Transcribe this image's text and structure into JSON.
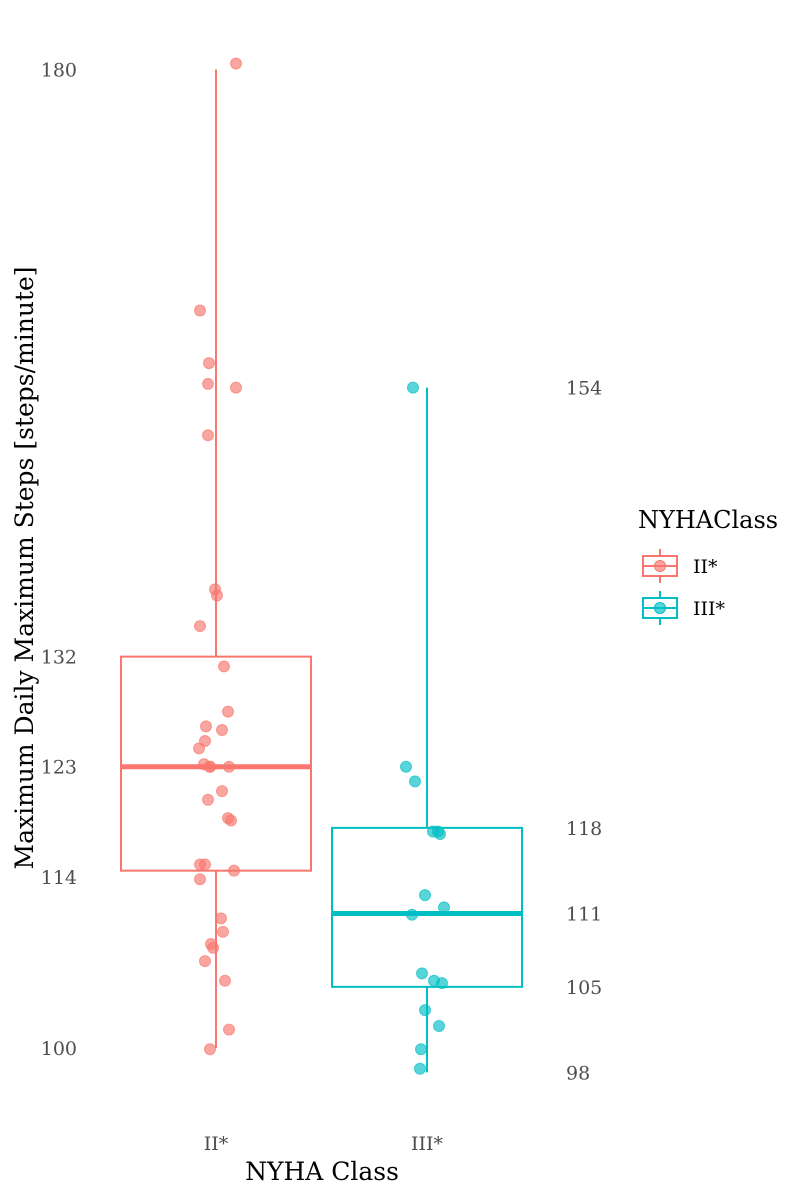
{
  "chart_data": {
    "type": "boxplot",
    "xlabel": "NYHA Class",
    "ylabel": "Maximum Daily Maximum Steps [steps/minute]",
    "categories": [
      "II*",
      "III*"
    ],
    "legend": {
      "title": "NYHAClass",
      "placement": "right",
      "entries": [
        "II*",
        "III*"
      ]
    },
    "grid": false,
    "ylim": [
      96,
      182
    ],
    "y_tick_labels_left": [
      180,
      132,
      123,
      114,
      100
    ],
    "y_tick_labels_right": [
      154,
      118,
      111,
      105,
      98
    ],
    "series": [
      {
        "name": "II*",
        "color": "#F8766D",
        "box": {
          "min": 100,
          "q1": 114.5,
          "median": 123,
          "q3": 132,
          "max": 180
        },
        "points": [
          180.5,
          160.3,
          156.0,
          154.3,
          154.0,
          150.1,
          137.5,
          137.0,
          134.5,
          131.2,
          127.5,
          126.3,
          126.0,
          125.1,
          124.5,
          123.2,
          123.0,
          123.0,
          123.0,
          121.0,
          120.3,
          118.8,
          118.6,
          115.0,
          115.0,
          114.5,
          113.8,
          110.6,
          109.5,
          108.5,
          108.2,
          107.1,
          105.5,
          101.5,
          99.9
        ]
      },
      {
        "name": "III*",
        "color": "#00BFC4",
        "box": {
          "min": 98,
          "q1": 105,
          "median": 111,
          "q3": 118,
          "max": 154
        },
        "points": [
          154.0,
          123.0,
          121.8,
          117.7,
          117.7,
          117.5,
          112.5,
          111.5,
          110.9,
          106.1,
          105.5,
          105.3,
          103.1,
          101.8,
          99.9,
          98.3
        ]
      }
    ]
  }
}
